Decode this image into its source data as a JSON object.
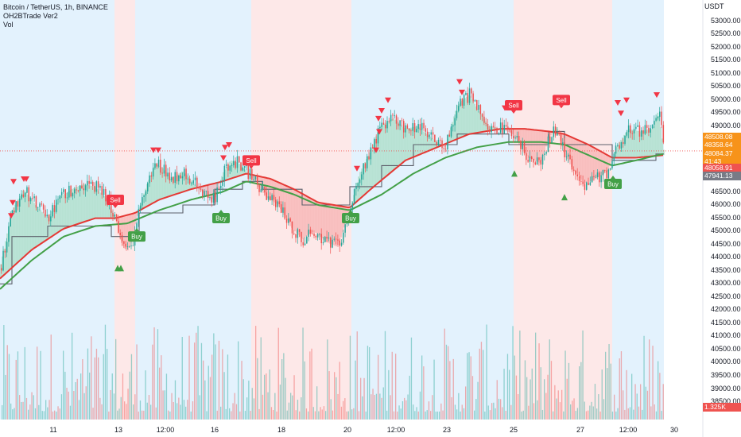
{
  "legend": {
    "title": "Bitcoin / TetherUS, 1h, BINANCE",
    "indicator": "OH2BTrade Ver2",
    "volume": "Vol"
  },
  "currency": "USDT",
  "y_ticks": [
    "53000.00",
    "52500.00",
    "52000.00",
    "51500.00",
    "51000.00",
    "50500.00",
    "50000.00",
    "49500.00",
    "49000.00",
    "48500.00",
    "48000.00",
    "47500.00",
    "47000.00",
    "46500.00",
    "46000.00",
    "45500.00",
    "45000.00",
    "44500.00",
    "44000.00",
    "43500.00",
    "43000.00",
    "42500.00",
    "42000.00",
    "41500.00",
    "41000.00",
    "40500.00",
    "40000.00",
    "39500.00",
    "39000.00",
    "38500.00"
  ],
  "x_ticks": [
    "11",
    "13",
    "12:00",
    "16",
    "18",
    "20",
    "12:00",
    "23",
    "25",
    "27",
    "12:00",
    "30"
  ],
  "price_labels": [
    {
      "text": "48508.08",
      "color": "#f7931a"
    },
    {
      "text": "48358.64",
      "color": "#f7931a"
    },
    {
      "text": "48084.37",
      "color": "#f7931a"
    },
    {
      "text": "41:43",
      "color": "#f7931a"
    },
    {
      "text": "48058.91",
      "color": "#ef5350"
    },
    {
      "text": "47941.13",
      "color": "#787b86"
    },
    {
      "text": "1.325K",
      "color": "#ef5350"
    }
  ],
  "colors": {
    "bull": "#26a69a",
    "bear": "#ef5350",
    "ema_fast": "#e53935",
    "ema_slow": "#43a047",
    "transition": "#ff9800",
    "stop_line": "#787b86",
    "zone_up": "#e3f2fd",
    "zone_down": "#fde8e8",
    "fill_up": "#b9e4c9",
    "fill_down": "#f8c6c6",
    "sell_label": "#f23645",
    "buy_label": "#43a047"
  },
  "chart_data": {
    "type": "candlestick",
    "symbol": "BTC/USDT",
    "interval": "1h",
    "y_range": [
      38200,
      53500
    ],
    "bands": [
      {
        "trend": "up",
        "from": 0,
        "to": 144
      },
      {
        "trend": "down",
        "from": 144,
        "to": 170
      },
      {
        "trend": "up",
        "from": 170,
        "to": 316
      },
      {
        "trend": "down",
        "from": 316,
        "to": 442
      },
      {
        "trend": "up",
        "from": 442,
        "to": 646
      },
      {
        "trend": "down",
        "from": 646,
        "to": 770
      },
      {
        "trend": "up",
        "from": 770,
        "to": 835
      }
    ],
    "price_path": [
      [
        0,
        43600
      ],
      [
        15,
        45800
      ],
      [
        30,
        46600
      ],
      [
        45,
        46000
      ],
      [
        60,
        45500
      ],
      [
        75,
        46300
      ],
      [
        90,
        46600
      ],
      [
        105,
        46800
      ],
      [
        120,
        46700
      ],
      [
        135,
        46200
      ],
      [
        145,
        45500
      ],
      [
        152,
        44600
      ],
      [
        160,
        44200
      ],
      [
        168,
        44800
      ],
      [
        175,
        45900
      ],
      [
        185,
        46800
      ],
      [
        195,
        47600
      ],
      [
        205,
        47400
      ],
      [
        215,
        47000
      ],
      [
        230,
        47300
      ],
      [
        245,
        46800
      ],
      [
        260,
        46300
      ],
      [
        270,
        46200
      ],
      [
        280,
        47200
      ],
      [
        290,
        47700
      ],
      [
        300,
        47600
      ],
      [
        310,
        47300
      ],
      [
        320,
        46900
      ],
      [
        335,
        46300
      ],
      [
        350,
        46000
      ],
      [
        365,
        45200
      ],
      [
        380,
        44700
      ],
      [
        395,
        45000
      ],
      [
        410,
        44600
      ],
      [
        425,
        44400
      ],
      [
        440,
        45800
      ],
      [
        452,
        47200
      ],
      [
        465,
        48000
      ],
      [
        478,
        49000
      ],
      [
        495,
        49300
      ],
      [
        510,
        48900
      ],
      [
        525,
        49000
      ],
      [
        545,
        48500
      ],
      [
        560,
        48200
      ],
      [
        575,
        49800
      ],
      [
        590,
        50200
      ],
      [
        600,
        49700
      ],
      [
        615,
        49000
      ],
      [
        630,
        48900
      ],
      [
        645,
        48700
      ],
      [
        655,
        48200
      ],
      [
        665,
        47800
      ],
      [
        680,
        47600
      ],
      [
        690,
        48500
      ],
      [
        700,
        49000
      ],
      [
        710,
        47900
      ],
      [
        720,
        47400
      ],
      [
        735,
        46800
      ],
      [
        750,
        47000
      ],
      [
        765,
        47300
      ],
      [
        775,
        48200
      ],
      [
        790,
        48900
      ],
      [
        805,
        48800
      ],
      [
        820,
        48900
      ],
      [
        828,
        49600
      ],
      [
        835,
        48100
      ]
    ],
    "ema_fast": [
      [
        0,
        43200
      ],
      [
        40,
        44300
      ],
      [
        80,
        45100
      ],
      [
        120,
        45500
      ],
      [
        145,
        45500
      ],
      [
        170,
        45700
      ],
      [
        200,
        46200
      ],
      [
        240,
        46600
      ],
      [
        280,
        46900
      ],
      [
        310,
        47200
      ],
      [
        340,
        47000
      ],
      [
        370,
        46600
      ],
      [
        400,
        46100
      ],
      [
        440,
        45900
      ],
      [
        470,
        46700
      ],
      [
        510,
        47700
      ],
      [
        550,
        48200
      ],
      [
        590,
        48700
      ],
      [
        630,
        48900
      ],
      [
        660,
        48900
      ],
      [
        690,
        48800
      ],
      [
        710,
        48700
      ],
      [
        740,
        48300
      ],
      [
        770,
        47800
      ],
      [
        800,
        47800
      ],
      [
        835,
        47900
      ]
    ],
    "ema_slow": [
      [
        0,
        42800
      ],
      [
        40,
        43900
      ],
      [
        80,
        44800
      ],
      [
        120,
        45200
      ],
      [
        160,
        45300
      ],
      [
        200,
        45800
      ],
      [
        240,
        46200
      ],
      [
        280,
        46500
      ],
      [
        310,
        46900
      ],
      [
        340,
        46700
      ],
      [
        370,
        46400
      ],
      [
        400,
        46000
      ],
      [
        440,
        45800
      ],
      [
        480,
        46400
      ],
      [
        520,
        47200
      ],
      [
        560,
        47800
      ],
      [
        600,
        48200
      ],
      [
        640,
        48400
      ],
      [
        680,
        48400
      ],
      [
        710,
        48300
      ],
      [
        740,
        47900
      ],
      [
        770,
        47500
      ],
      [
        800,
        47700
      ],
      [
        835,
        47950
      ]
    ],
    "stop_line": [
      [
        0,
        43000
      ],
      [
        15,
        43000
      ],
      [
        15,
        44800
      ],
      [
        60,
        44800
      ],
      [
        60,
        45200
      ],
      [
        140,
        45200
      ],
      [
        140,
        44800
      ],
      [
        175,
        44800
      ],
      [
        175,
        45700
      ],
      [
        230,
        45700
      ],
      [
        230,
        46000
      ],
      [
        270,
        46000
      ],
      [
        270,
        46600
      ],
      [
        305,
        46600
      ],
      [
        305,
        46900
      ],
      [
        330,
        46900
      ],
      [
        330,
        46600
      ],
      [
        380,
        46600
      ],
      [
        380,
        46000
      ],
      [
        440,
        46000
      ],
      [
        440,
        46700
      ],
      [
        480,
        46700
      ],
      [
        480,
        47500
      ],
      [
        520,
        47500
      ],
      [
        520,
        48300
      ],
      [
        575,
        48300
      ],
      [
        575,
        48700
      ],
      [
        640,
        48700
      ],
      [
        640,
        48300
      ],
      [
        690,
        48300
      ],
      [
        690,
        48800
      ],
      [
        710,
        48800
      ],
      [
        710,
        48300
      ],
      [
        770,
        48300
      ],
      [
        770,
        47700
      ],
      [
        825,
        47700
      ],
      [
        825,
        47941
      ],
      [
        835,
        47941
      ]
    ],
    "sell_markers": [
      {
        "x": 145,
        "price": 46000,
        "label": "Sell"
      },
      {
        "x": 316,
        "price": 47500,
        "label": "Sell"
      },
      {
        "x": 646,
        "price": 49600,
        "label": "Sell"
      },
      {
        "x": 706,
        "price": 49800,
        "label": "Sell"
      }
    ],
    "buy_markers": [
      {
        "x": 172,
        "price": 45000,
        "label": "Buy"
      },
      {
        "x": 278,
        "price": 45700,
        "label": "Buy"
      },
      {
        "x": 441,
        "price": 45700,
        "label": "Buy"
      },
      {
        "x": 771,
        "price": 47000,
        "label": "Buy"
      }
    ],
    "down_triangles": [
      [
        16,
        46100
      ],
      [
        14,
        45600
      ],
      [
        17,
        46900
      ],
      [
        30,
        47000
      ],
      [
        33,
        47000
      ],
      [
        193,
        48100
      ],
      [
        199,
        48100
      ],
      [
        283,
        48200
      ],
      [
        288,
        48300
      ],
      [
        281,
        47800
      ],
      [
        449,
        47400
      ],
      [
        473,
        48100
      ],
      [
        477,
        48800
      ],
      [
        476,
        49300
      ],
      [
        480,
        49600
      ],
      [
        488,
        50000
      ],
      [
        578,
        50700
      ],
      [
        581,
        50300
      ],
      [
        635,
        49700
      ],
      [
        777,
        49900
      ],
      [
        781,
        49500
      ],
      [
        788,
        50000
      ],
      [
        826,
        50200
      ]
    ],
    "up_triangles": [
      [
        148,
        43600
      ],
      [
        152,
        43600
      ],
      [
        647,
        47200
      ],
      [
        710,
        46300
      ]
    ],
    "current_price": 48058.91
  }
}
